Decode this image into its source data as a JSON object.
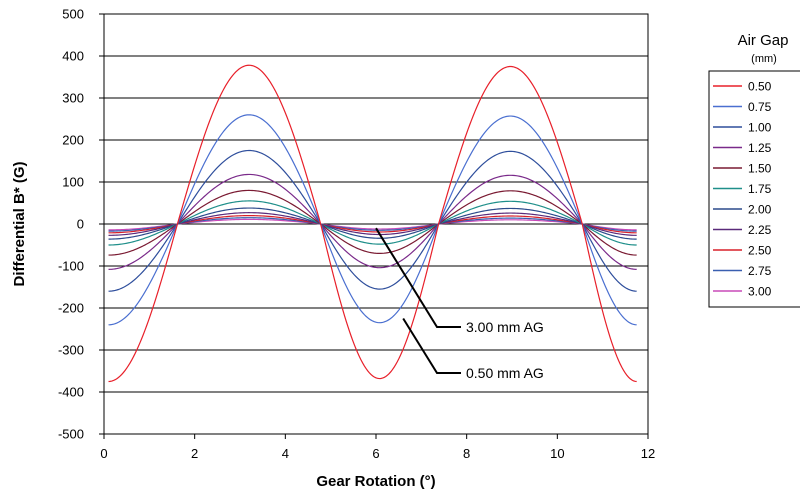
{
  "chart_data": {
    "type": "line",
    "title": "",
    "xlabel": "Gear Rotation (°)",
    "ylabel": "Differential B* (G)",
    "xlim": [
      0,
      12
    ],
    "ylim": [
      -500,
      500
    ],
    "x_ticks": [
      0,
      2,
      4,
      6,
      8,
      10,
      12
    ],
    "y_ticks": [
      -500,
      -400,
      -300,
      -200,
      -100,
      0,
      100,
      200,
      300,
      400,
      500
    ],
    "grid": "horizontal",
    "legend": {
      "title": "Air Gap",
      "subtitle": "(mm)",
      "placement": "right"
    },
    "x_range_data": [
      0.1,
      11.75
    ],
    "zero_crossings": [
      1.62,
      4.78,
      7.38,
      10.55
    ],
    "series": [
      {
        "name": "0.50",
        "color": "#e8202a",
        "minimum": -375,
        "peak1": 378,
        "trough": -368,
        "peak2": 375
      },
      {
        "name": "0.75",
        "color": "#4a6fd0",
        "minimum": -240,
        "peak1": 260,
        "trough": -235,
        "peak2": 257
      },
      {
        "name": "1.00",
        "color": "#2e4e9c",
        "minimum": -160,
        "peak1": 175,
        "trough": -155,
        "peak2": 173
      },
      {
        "name": "1.25",
        "color": "#7a2a8a",
        "minimum": -108,
        "peak1": 118,
        "trough": -104,
        "peak2": 116
      },
      {
        "name": "1.50",
        "color": "#7a1a32",
        "minimum": -74,
        "peak1": 80,
        "trough": -70,
        "peak2": 79
      },
      {
        "name": "1.75",
        "color": "#1f8f8a",
        "minimum": -50,
        "peak1": 55,
        "trough": -48,
        "peak2": 54
      },
      {
        "name": "2.00",
        "color": "#2c4a8c",
        "minimum": -36,
        "peak1": 38,
        "trough": -34,
        "peak2": 37
      },
      {
        "name": "2.25",
        "color": "#5a2a7a",
        "minimum": -27,
        "peak1": 27,
        "trough": -25,
        "peak2": 26
      },
      {
        "name": "2.50",
        "color": "#d8202a",
        "minimum": -21,
        "peak1": 20,
        "trough": -19,
        "peak2": 19
      },
      {
        "name": "2.75",
        "color": "#3a5fb0",
        "minimum": -17,
        "peak1": 15,
        "trough": -15,
        "peak2": 14
      },
      {
        "name": "3.00",
        "color": "#c84ab8",
        "minimum": -14,
        "peak1": 11,
        "trough": -12,
        "peak2": 10
      }
    ],
    "annotations": [
      {
        "text": "3.00 mm AG",
        "points_to_x": 6.0,
        "points_to_y": -10
      },
      {
        "text": "0.50 mm AG",
        "points_to_x": 6.6,
        "points_to_y": -225
      }
    ]
  }
}
